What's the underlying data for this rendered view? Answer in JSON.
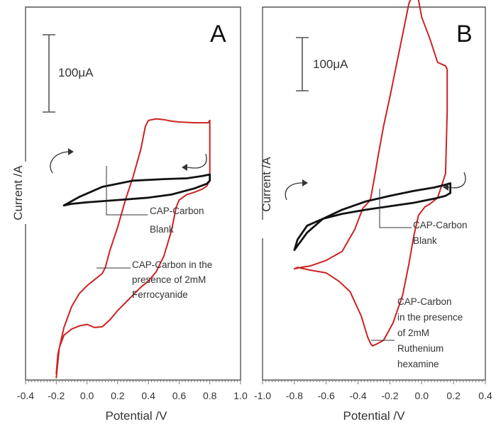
{
  "chart_data": [
    {
      "type": "line",
      "panel_label": "A",
      "xlabel": "Potential /V",
      "ylabel": "Current /A",
      "xlim": [
        -0.4,
        1.0
      ],
      "ticks": [
        "-0.4",
        "-0.2",
        "0.0",
        "0.2",
        "0.4",
        "0.6",
        "0.8",
        "1.0"
      ],
      "scale_bar": "100μA",
      "series": [
        {
          "color": "#cc2222",
          "x": [
            -0.2,
            -0.19,
            -0.15,
            -0.1,
            -0.05,
            0.0,
            0.05,
            0.1,
            0.12,
            0.15,
            0.2,
            0.25,
            0.3,
            0.35,
            0.38,
            0.4,
            0.45,
            0.5,
            0.55,
            0.6,
            0.7,
            0.79,
            0.8,
            0.8,
            0.8,
            0.78,
            0.75,
            0.7,
            0.65,
            0.6,
            0.58,
            0.55,
            0.5,
            0.45,
            0.4,
            0.35,
            0.3,
            0.25,
            0.2,
            0.15,
            0.1,
            0.05,
            0.0,
            -0.05,
            -0.1,
            -0.15,
            -0.18,
            -0.2
          ],
          "y": [
            -270,
            -245,
            -210,
            -183,
            -166,
            -156,
            -148,
            -140,
            -132,
            -110,
            -80,
            -45,
            -15,
            20,
            50,
            58,
            60,
            59,
            57,
            56,
            55,
            55,
            58,
            45,
            -20,
            -27,
            -31,
            -35,
            -38,
            -45,
            -55,
            -85,
            -118,
            -138,
            -150,
            -158,
            -168,
            -178,
            -188,
            -200,
            -209,
            -210,
            -206,
            -208,
            -212,
            -220,
            -236,
            -275
          ]
        },
        {
          "color": "#111111",
          "x": [
            -0.15,
            -0.05,
            0.1,
            0.3,
            0.5,
            0.65,
            0.75,
            0.8,
            0.8,
            0.78,
            0.7,
            0.55,
            0.4,
            0.2,
            0.0,
            -0.1,
            -0.15
          ],
          "y": [
            -52,
            -41,
            -28,
            -20,
            -18,
            -17,
            -14,
            -12,
            -20,
            -24,
            -30,
            -38,
            -42,
            -45,
            -48,
            -50,
            -52
          ]
        }
      ],
      "annotations": [
        {
          "lines": [
            "CAP-Carbon",
            "Blank"
          ]
        },
        {
          "lines": [
            "CAP-Carbon in the",
            "presence of 2mM",
            "Ferrocyanide"
          ]
        }
      ]
    },
    {
      "type": "line",
      "panel_label": "B",
      "xlabel": "Potential /V",
      "ylabel": "Current /A",
      "xlim": [
        -1.0,
        0.4
      ],
      "ticks": [
        "-1.0",
        "-0.8",
        "-0.6",
        "-0.4",
        "-0.2",
        "0.0",
        "0.2",
        "0.4"
      ],
      "scale_bar": "100μA",
      "series": [
        {
          "color": "#cc2222",
          "x": [
            -0.8,
            -0.76,
            -0.7,
            -0.6,
            -0.5,
            -0.42,
            -0.37,
            -0.33,
            -0.32,
            -0.3,
            -0.27,
            -0.24,
            -0.2,
            -0.16,
            -0.12,
            -0.08,
            -0.05,
            -0.02,
            0.0,
            0.05,
            0.1,
            0.15,
            0.16,
            0.16,
            0.15,
            0.1,
            0.05,
            0.02,
            -0.02,
            -0.05,
            -0.08,
            -0.12,
            -0.18,
            -0.24,
            -0.28,
            -0.31,
            -0.32,
            -0.34,
            -0.38,
            -0.45,
            -0.52,
            -0.6,
            -0.7,
            -0.78,
            -0.8
          ],
          "y": [
            -147,
            -145,
            -143,
            -135,
            -122,
            -90,
            -60,
            -50,
            -45,
            -20,
            20,
            58,
            100,
            145,
            190,
            235,
            250,
            240,
            215,
            185,
            150,
            145,
            140,
            80,
            -10,
            -45,
            -54,
            -58,
            -70,
            -100,
            -140,
            -185,
            -225,
            -250,
            -255,
            -258,
            -255,
            -245,
            -215,
            -180,
            -165,
            -153,
            -149,
            -145,
            -147
          ]
        },
        {
          "color": "#111111",
          "x": [
            -0.8,
            -0.72,
            -0.62,
            -0.5,
            -0.35,
            -0.2,
            -0.05,
            0.08,
            0.15,
            0.18,
            0.18,
            0.15,
            0.08,
            -0.05,
            -0.2,
            -0.35,
            -0.5,
            -0.62,
            -0.72,
            -0.78,
            -0.8
          ],
          "y": [
            -120,
            -95,
            -75,
            -62,
            -50,
            -42,
            -35,
            -30,
            -26,
            -24,
            -38,
            -42,
            -46,
            -52,
            -57,
            -62,
            -68,
            -75,
            -85,
            -105,
            -120
          ]
        }
      ],
      "annotations": [
        {
          "lines": [
            "CAP-Carbon",
            "Blank"
          ]
        },
        {
          "lines": [
            "CAP-Carbon",
            "in the presence",
            "of 2mM",
            "Ruthenium",
            "hexamine"
          ]
        }
      ]
    }
  ]
}
